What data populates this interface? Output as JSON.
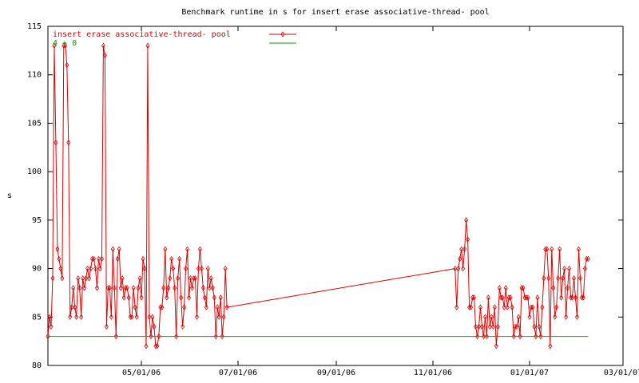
{
  "chart_data": {
    "type": "line",
    "title": "Benchmark runtime in s for insert erase associative-thread-  pool",
    "y_label": "s",
    "xlim": [
      "2006-03-03",
      "2007-03-01"
    ],
    "xticks": [
      {
        "value": "2006-05-01",
        "label": "05/01/06"
      },
      {
        "value": "2006-07-01",
        "label": "07/01/06"
      },
      {
        "value": "2006-09-01",
        "label": "09/01/06"
      },
      {
        "value": "2006-11-01",
        "label": "11/01/06"
      },
      {
        "value": "2007-01-01",
        "label": "01/01/07"
      },
      {
        "value": "2007-03-01",
        "label": "03/01/07"
      }
    ],
    "ylim": [
      80,
      115
    ],
    "yticks": [
      80,
      85,
      90,
      95,
      100,
      105,
      110,
      115
    ],
    "legend": "top-left",
    "series": [
      {
        "name": "insert erase associative-thread-  pool",
        "color": "#e00000",
        "markers": true,
        "x": [
          "2006-03-03",
          "2006-03-04",
          "2006-03-05",
          "2006-03-06",
          "2006-03-07",
          "2006-03-08",
          "2006-03-09",
          "2006-03-10",
          "2006-03-11",
          "2006-03-12",
          "2006-03-13",
          "2006-03-14",
          "2006-03-15",
          "2006-03-16",
          "2006-03-17",
          "2006-03-18",
          "2006-03-19",
          "2006-03-20",
          "2006-03-21",
          "2006-03-22",
          "2006-03-23",
          "2006-03-24",
          "2006-03-25",
          "2006-03-26",
          "2006-03-27",
          "2006-03-28",
          "2006-03-29",
          "2006-03-30",
          "2006-03-31",
          "2006-04-01",
          "2006-04-02",
          "2006-04-03",
          "2006-04-04",
          "2006-04-05",
          "2006-04-06",
          "2006-04-07",
          "2006-04-08",
          "2006-04-09",
          "2006-04-10",
          "2006-04-11",
          "2006-04-12",
          "2006-04-13",
          "2006-04-14",
          "2006-04-15",
          "2006-04-16",
          "2006-04-17",
          "2006-04-18",
          "2006-04-19",
          "2006-04-20",
          "2006-04-21",
          "2006-04-22",
          "2006-04-23",
          "2006-04-24",
          "2006-04-25",
          "2006-04-26",
          "2006-04-27",
          "2006-04-28",
          "2006-04-29",
          "2006-04-30",
          "2006-05-01",
          "2006-05-02",
          "2006-05-03",
          "2006-05-04",
          "2006-05-05",
          "2006-05-06",
          "2006-05-07",
          "2006-05-08",
          "2006-05-09",
          "2006-05-10",
          "2006-05-11",
          "2006-05-12",
          "2006-05-13",
          "2006-05-14",
          "2006-05-15",
          "2006-05-16",
          "2006-05-17",
          "2006-05-18",
          "2006-05-19",
          "2006-05-20",
          "2006-05-21",
          "2006-05-22",
          "2006-05-23",
          "2006-05-24",
          "2006-05-25",
          "2006-05-26",
          "2006-05-27",
          "2006-05-28",
          "2006-05-29",
          "2006-05-30",
          "2006-05-31",
          "2006-06-01",
          "2006-06-02",
          "2006-06-03",
          "2006-06-04",
          "2006-06-05",
          "2006-06-06",
          "2006-06-07",
          "2006-06-08",
          "2006-06-09",
          "2006-06-10",
          "2006-06-11",
          "2006-06-12",
          "2006-06-13",
          "2006-06-14",
          "2006-06-15",
          "2006-06-16",
          "2006-06-17",
          "2006-06-18",
          "2006-06-19",
          "2006-06-20",
          "2006-06-21",
          "2006-06-22",
          "2006-06-23",
          "2006-06-24",
          "2006-11-15",
          "2006-11-16",
          "2006-11-17",
          "2006-11-18",
          "2006-11-19",
          "2006-11-20",
          "2006-11-21",
          "2006-11-22",
          "2006-11-23",
          "2006-11-24",
          "2006-11-25",
          "2006-11-26",
          "2006-11-27",
          "2006-11-28",
          "2006-11-29",
          "2006-11-30",
          "2006-12-01",
          "2006-12-02",
          "2006-12-03",
          "2006-12-04",
          "2006-12-05",
          "2006-12-06",
          "2006-12-07",
          "2006-12-08",
          "2006-12-09",
          "2006-12-10",
          "2006-12-11",
          "2006-12-12",
          "2006-12-13",
          "2006-12-14",
          "2006-12-15",
          "2006-12-16",
          "2006-12-17",
          "2006-12-18",
          "2006-12-19",
          "2006-12-20",
          "2006-12-21",
          "2006-12-22",
          "2006-12-23",
          "2006-12-24",
          "2006-12-25",
          "2006-12-26",
          "2006-12-27",
          "2006-12-28",
          "2006-12-29",
          "2006-12-30",
          "2006-12-31",
          "2007-01-01",
          "2007-01-02",
          "2007-01-03",
          "2007-01-04",
          "2007-01-05",
          "2007-01-06",
          "2007-01-07",
          "2007-01-08",
          "2007-01-09",
          "2007-01-10",
          "2007-01-11",
          "2007-01-12",
          "2007-01-13",
          "2007-01-14",
          "2007-01-15",
          "2007-01-16",
          "2007-01-17",
          "2007-01-18",
          "2007-01-19",
          "2007-01-20",
          "2007-01-21",
          "2007-01-22",
          "2007-01-23",
          "2007-01-24",
          "2007-01-25",
          "2007-01-26",
          "2007-01-27",
          "2007-01-28",
          "2007-01-29",
          "2007-01-30",
          "2007-01-31",
          "2007-02-01",
          "2007-02-02",
          "2007-02-03",
          "2007-02-04",
          "2007-02-05",
          "2007-02-06",
          "2007-02-07"
        ],
        "values": [
          83,
          85,
          84,
          89,
          113,
          103,
          92,
          91,
          90,
          89,
          113,
          113,
          111,
          103,
          85,
          86,
          88,
          86,
          85,
          89,
          88,
          85,
          89,
          88,
          89,
          90,
          89,
          90,
          91,
          91,
          90,
          88,
          91,
          90,
          91,
          113,
          112,
          84,
          88,
          88,
          85,
          92,
          88,
          83,
          91,
          92,
          88,
          89,
          87,
          88,
          88,
          87,
          85,
          85,
          88,
          86,
          85,
          88,
          89,
          87,
          91,
          90,
          82,
          113,
          85,
          83,
          85,
          84,
          82,
          82,
          83,
          86,
          86,
          88,
          92,
          87,
          88,
          89,
          91,
          90,
          88,
          83,
          89,
          91,
          87,
          84,
          86,
          90,
          92,
          87,
          89,
          88,
          89,
          89,
          85,
          90,
          92,
          90,
          88,
          87,
          86,
          90,
          88,
          89,
          88,
          87,
          83,
          86,
          85,
          87,
          83,
          85,
          90,
          86,
          90,
          86,
          90,
          91,
          92,
          90,
          92,
          95,
          93,
          86,
          86,
          87,
          87,
          84,
          83,
          84,
          86,
          84,
          83,
          85,
          83,
          87,
          84,
          85,
          84,
          86,
          82,
          84,
          88,
          87,
          87,
          86,
          88,
          86,
          87,
          87,
          86,
          83,
          84,
          84,
          85,
          83,
          88,
          88,
          87,
          87,
          87,
          85,
          86,
          86,
          84,
          83,
          87,
          84,
          83,
          86,
          89,
          92,
          92,
          89,
          82,
          92,
          88,
          85,
          86,
          89,
          92,
          87,
          89,
          90,
          85,
          88,
          90,
          87,
          87,
          89,
          87,
          85,
          92,
          89,
          87,
          87,
          90,
          91,
          91
        ]
      },
      {
        "name": "4 + 0",
        "color": "#00a000",
        "markers": false,
        "x": [
          "2006-03-03",
          "2007-02-07"
        ],
        "values": [
          83,
          83
        ]
      }
    ]
  }
}
